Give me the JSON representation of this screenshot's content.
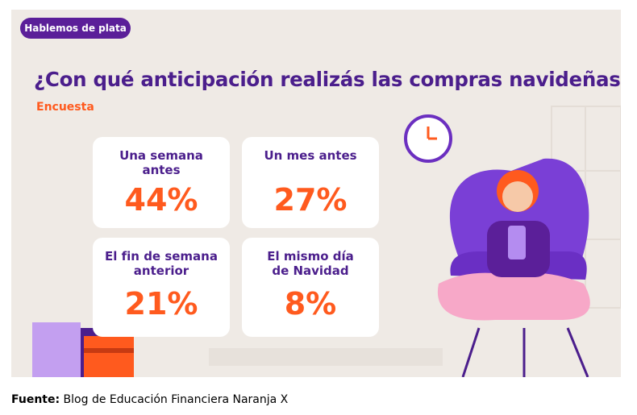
{
  "tag": "Hablemos de plata",
  "title": "¿Con qué anticipación realizás las compras navideñas?",
  "subtitle": "Encuesta",
  "cards": [
    {
      "label": "Una semana antes",
      "value": "44%"
    },
    {
      "label": "Un mes antes",
      "value": "27%"
    },
    {
      "label": "El fin de semana anterior",
      "value": "21%"
    },
    {
      "label": "El mismo día de Navidad",
      "value": "8%"
    }
  ],
  "source": {
    "label": "Fuente:",
    "text": "Blog de Educación Financiera Naranja X"
  }
}
